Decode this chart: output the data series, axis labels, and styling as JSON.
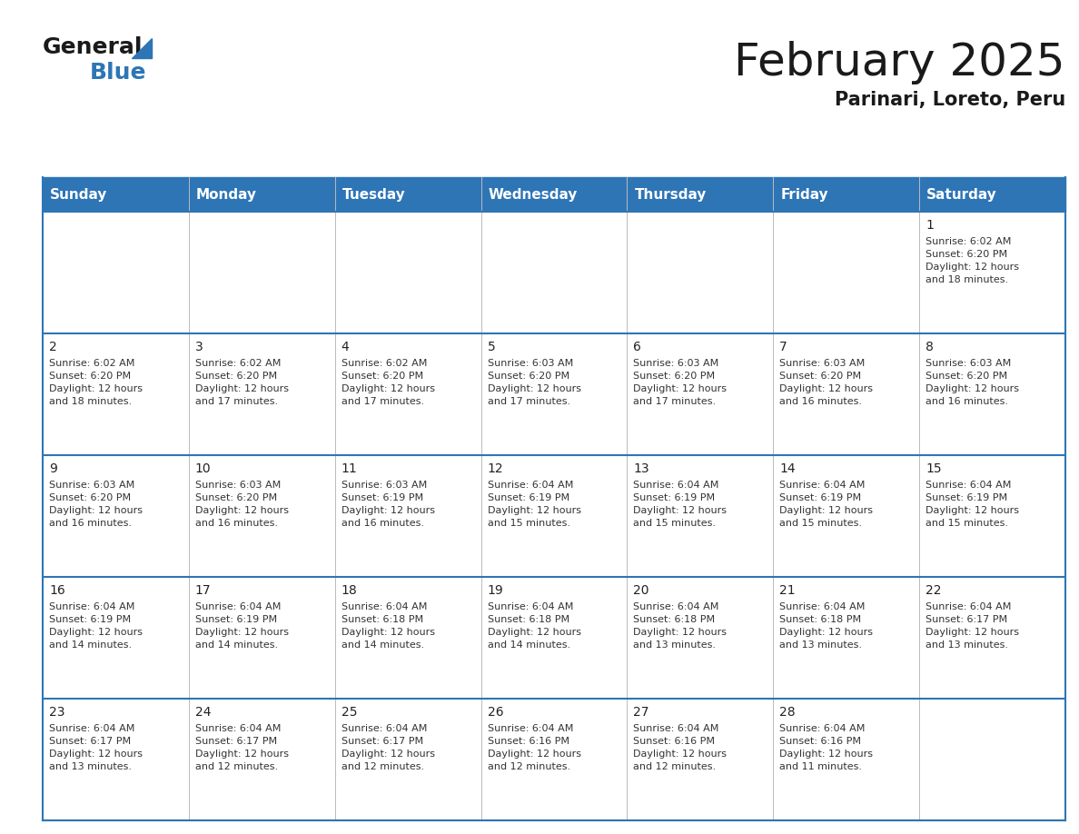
{
  "title": "February 2025",
  "subtitle": "Parinari, Loreto, Peru",
  "header_bg": "#2E75B6",
  "header_text": "#FFFFFF",
  "cell_bg": "#FFFFFF",
  "border_color": "#2E75B6",
  "row_separator_color": "#2E75B6",
  "col_separator_color": "#AAAAAA",
  "day_names": [
    "Sunday",
    "Monday",
    "Tuesday",
    "Wednesday",
    "Thursday",
    "Friday",
    "Saturday"
  ],
  "calendar_data": [
    [
      {
        "day": null,
        "info": null
      },
      {
        "day": null,
        "info": null
      },
      {
        "day": null,
        "info": null
      },
      {
        "day": null,
        "info": null
      },
      {
        "day": null,
        "info": null
      },
      {
        "day": null,
        "info": null
      },
      {
        "day": "1",
        "info": "Sunrise: 6:02 AM\nSunset: 6:20 PM\nDaylight: 12 hours\nand 18 minutes."
      }
    ],
    [
      {
        "day": "2",
        "info": "Sunrise: 6:02 AM\nSunset: 6:20 PM\nDaylight: 12 hours\nand 18 minutes."
      },
      {
        "day": "3",
        "info": "Sunrise: 6:02 AM\nSunset: 6:20 PM\nDaylight: 12 hours\nand 17 minutes."
      },
      {
        "day": "4",
        "info": "Sunrise: 6:02 AM\nSunset: 6:20 PM\nDaylight: 12 hours\nand 17 minutes."
      },
      {
        "day": "5",
        "info": "Sunrise: 6:03 AM\nSunset: 6:20 PM\nDaylight: 12 hours\nand 17 minutes."
      },
      {
        "day": "6",
        "info": "Sunrise: 6:03 AM\nSunset: 6:20 PM\nDaylight: 12 hours\nand 17 minutes."
      },
      {
        "day": "7",
        "info": "Sunrise: 6:03 AM\nSunset: 6:20 PM\nDaylight: 12 hours\nand 16 minutes."
      },
      {
        "day": "8",
        "info": "Sunrise: 6:03 AM\nSunset: 6:20 PM\nDaylight: 12 hours\nand 16 minutes."
      }
    ],
    [
      {
        "day": "9",
        "info": "Sunrise: 6:03 AM\nSunset: 6:20 PM\nDaylight: 12 hours\nand 16 minutes."
      },
      {
        "day": "10",
        "info": "Sunrise: 6:03 AM\nSunset: 6:20 PM\nDaylight: 12 hours\nand 16 minutes."
      },
      {
        "day": "11",
        "info": "Sunrise: 6:03 AM\nSunset: 6:19 PM\nDaylight: 12 hours\nand 16 minutes."
      },
      {
        "day": "12",
        "info": "Sunrise: 6:04 AM\nSunset: 6:19 PM\nDaylight: 12 hours\nand 15 minutes."
      },
      {
        "day": "13",
        "info": "Sunrise: 6:04 AM\nSunset: 6:19 PM\nDaylight: 12 hours\nand 15 minutes."
      },
      {
        "day": "14",
        "info": "Sunrise: 6:04 AM\nSunset: 6:19 PM\nDaylight: 12 hours\nand 15 minutes."
      },
      {
        "day": "15",
        "info": "Sunrise: 6:04 AM\nSunset: 6:19 PM\nDaylight: 12 hours\nand 15 minutes."
      }
    ],
    [
      {
        "day": "16",
        "info": "Sunrise: 6:04 AM\nSunset: 6:19 PM\nDaylight: 12 hours\nand 14 minutes."
      },
      {
        "day": "17",
        "info": "Sunrise: 6:04 AM\nSunset: 6:19 PM\nDaylight: 12 hours\nand 14 minutes."
      },
      {
        "day": "18",
        "info": "Sunrise: 6:04 AM\nSunset: 6:18 PM\nDaylight: 12 hours\nand 14 minutes."
      },
      {
        "day": "19",
        "info": "Sunrise: 6:04 AM\nSunset: 6:18 PM\nDaylight: 12 hours\nand 14 minutes."
      },
      {
        "day": "20",
        "info": "Sunrise: 6:04 AM\nSunset: 6:18 PM\nDaylight: 12 hours\nand 13 minutes."
      },
      {
        "day": "21",
        "info": "Sunrise: 6:04 AM\nSunset: 6:18 PM\nDaylight: 12 hours\nand 13 minutes."
      },
      {
        "day": "22",
        "info": "Sunrise: 6:04 AM\nSunset: 6:17 PM\nDaylight: 12 hours\nand 13 minutes."
      }
    ],
    [
      {
        "day": "23",
        "info": "Sunrise: 6:04 AM\nSunset: 6:17 PM\nDaylight: 12 hours\nand 13 minutes."
      },
      {
        "day": "24",
        "info": "Sunrise: 6:04 AM\nSunset: 6:17 PM\nDaylight: 12 hours\nand 12 minutes."
      },
      {
        "day": "25",
        "info": "Sunrise: 6:04 AM\nSunset: 6:17 PM\nDaylight: 12 hours\nand 12 minutes."
      },
      {
        "day": "26",
        "info": "Sunrise: 6:04 AM\nSunset: 6:16 PM\nDaylight: 12 hours\nand 12 minutes."
      },
      {
        "day": "27",
        "info": "Sunrise: 6:04 AM\nSunset: 6:16 PM\nDaylight: 12 hours\nand 12 minutes."
      },
      {
        "day": "28",
        "info": "Sunrise: 6:04 AM\nSunset: 6:16 PM\nDaylight: 12 hours\nand 11 minutes."
      },
      {
        "day": null,
        "info": null
      }
    ]
  ],
  "logo_general_color": "#1a1a1a",
  "logo_blue_color": "#2E75B6",
  "title_fontsize": 36,
  "subtitle_fontsize": 15,
  "header_fontsize": 11,
  "day_num_fontsize": 10,
  "info_fontsize": 8
}
